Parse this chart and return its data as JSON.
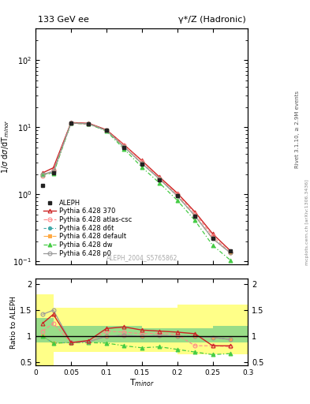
{
  "title_left": "133 GeV ee",
  "title_right": "γ*/Z (Hadronic)",
  "ref_label": "ALEPH_2004_S5765862",
  "right_label": "Rivet 3.1.10, ≥ 2.9M events",
  "right_label2": "mcplots.cern.ch [arXiv:1306.3436]",
  "x_data": [
    0.01,
    0.025,
    0.05,
    0.075,
    0.1,
    0.125,
    0.15,
    0.175,
    0.2,
    0.225,
    0.25,
    0.275
  ],
  "aleph_y": [
    1.35,
    2.1,
    11.5,
    11.2,
    9.0,
    5.0,
    2.85,
    1.65,
    0.95,
    0.48,
    0.22,
    0.145
  ],
  "py370_y": [
    2.1,
    2.5,
    11.8,
    11.5,
    9.2,
    5.5,
    3.2,
    1.82,
    1.05,
    0.55,
    0.26,
    0.145
  ],
  "pyatlas_y": [
    1.9,
    2.3,
    11.5,
    11.2,
    9.0,
    5.4,
    3.1,
    1.75,
    1.0,
    0.52,
    0.24,
    0.135
  ],
  "pyd6t_y": [
    2.0,
    2.1,
    11.6,
    11.3,
    9.0,
    5.1,
    2.9,
    1.7,
    0.95,
    0.48,
    0.22,
    0.135
  ],
  "pydefault_y": [
    2.0,
    2.1,
    11.6,
    11.3,
    9.0,
    5.1,
    2.9,
    1.7,
    0.95,
    0.48,
    0.22,
    0.135
  ],
  "pydw_y": [
    2.0,
    2.05,
    11.55,
    11.2,
    8.8,
    4.75,
    2.55,
    1.48,
    0.82,
    0.41,
    0.175,
    0.105
  ],
  "pyp0_y": [
    2.0,
    2.2,
    11.6,
    11.3,
    9.0,
    5.1,
    2.9,
    1.7,
    0.95,
    0.48,
    0.22,
    0.135
  ],
  "ratio_370": [
    1.25,
    1.42,
    0.88,
    0.92,
    1.15,
    1.18,
    1.12,
    1.1,
    1.08,
    1.05,
    0.82,
    0.82
  ],
  "ratio_atlas": [
    1.1,
    1.25,
    0.88,
    0.9,
    1.1,
    1.08,
    1.05,
    1.06,
    1.03,
    0.82,
    0.82,
    0.8
  ],
  "ratio_d6t": [
    1.0,
    0.87,
    0.88,
    0.9,
    1.0,
    1.02,
    1.0,
    1.02,
    1.0,
    1.0,
    0.98,
    0.94
  ],
  "ratio_default": [
    1.0,
    0.87,
    0.88,
    0.9,
    1.0,
    1.02,
    1.0,
    1.02,
    1.0,
    1.0,
    0.98,
    0.94
  ],
  "ratio_dw": [
    1.0,
    0.87,
    0.88,
    0.88,
    0.87,
    0.82,
    0.78,
    0.8,
    0.75,
    0.7,
    0.65,
    0.67
  ],
  "ratio_p0": [
    1.42,
    1.5,
    0.88,
    0.9,
    1.0,
    1.02,
    1.0,
    1.02,
    1.0,
    1.0,
    0.98,
    0.94
  ],
  "band_edges": [
    0.0,
    0.025,
    0.075,
    0.15,
    0.2,
    0.25,
    0.3
  ],
  "green_low": [
    0.88,
    0.88,
    0.88,
    0.88,
    0.88,
    0.88
  ],
  "green_high": [
    1.35,
    1.2,
    1.2,
    1.15,
    1.15,
    1.2
  ],
  "yellow_low": [
    0.45,
    0.7,
    0.7,
    0.7,
    0.65,
    0.65
  ],
  "yellow_high": [
    1.8,
    1.55,
    1.55,
    1.55,
    1.6,
    1.6
  ],
  "xlim": [
    0.0,
    0.3
  ],
  "ylim_main": [
    0.09,
    300
  ],
  "ylim_ratio": [
    0.44,
    2.1
  ],
  "color_370": "#cc2222",
  "color_atlas": "#ff8888",
  "color_d6t": "#44aaaa",
  "color_default": "#ffaa44",
  "color_dw": "#44cc44",
  "color_p0": "#999999",
  "color_aleph": "#222222"
}
